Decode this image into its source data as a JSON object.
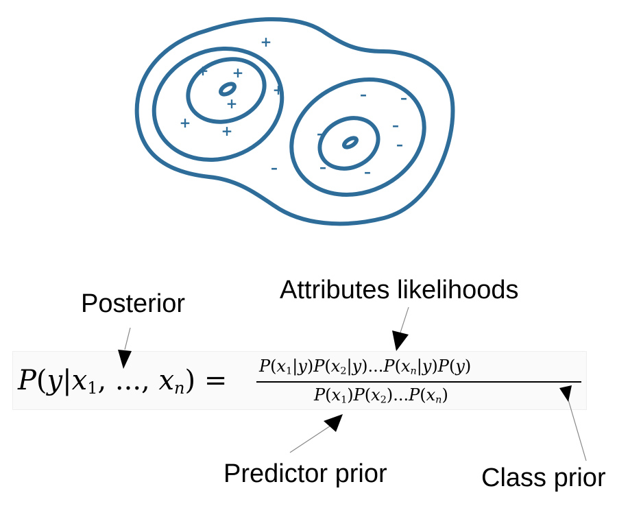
{
  "diagram": {
    "contour_color": "#2e6d9a",
    "plus_symbol": "+",
    "minus_symbol": "–"
  },
  "labels": {
    "posterior": "Posterior",
    "attributes_likelihoods": "Attributes likelihoods",
    "predictor_prior": "Predictor prior",
    "class_prior": "Class prior"
  },
  "formula": {
    "lhs": "P(y|x1, ..., xn) =",
    "numerator": "P(x1|y)P(x2|y)...P(xn|y)P(y)",
    "denominator": "P(x1)P(x2)...P(xn)"
  }
}
